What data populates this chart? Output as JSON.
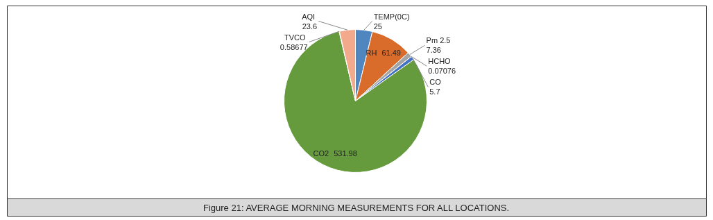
{
  "chart_data": {
    "type": "pie",
    "title": "Figure 21: AVERAGE MORNING MEASUREMENTS FOR ALL LOCATIONS.",
    "categories": [
      "TEMP(0C)",
      "RH",
      "Pm 2.5",
      "HCHO",
      "CO",
      "CO2",
      "TVCO",
      "AQI"
    ],
    "values": [
      25,
      61.49,
      7.36,
      0.07076,
      5.7,
      531.98,
      0.58677,
      23.6
    ],
    "colors": [
      "#4f86c0",
      "#d96b2b",
      "#a5a5a5",
      "#ffc000",
      "#4472c4",
      "#659b3d",
      "#5b9bd5",
      "#f2a98c"
    ],
    "data_labels": true
  }
}
